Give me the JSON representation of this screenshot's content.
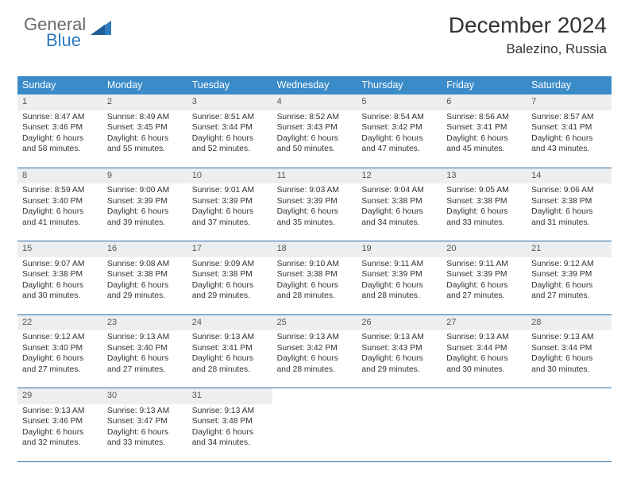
{
  "brand": {
    "line1": "General",
    "line2": "Blue"
  },
  "title": {
    "month": "December 2024",
    "location": "Balezino, Russia"
  },
  "colors": {
    "header_bg": "#3b8bc9",
    "header_text": "#ffffff",
    "daynum_bg": "#eceef0",
    "week_border": "#2f6fa0",
    "logo_gray": "#6a6a6a",
    "logo_blue": "#2e7bbf",
    "body_text": "#333333"
  },
  "typography": {
    "title_fontsize_pt": 21,
    "location_fontsize_pt": 13,
    "header_fontsize_pt": 9.5,
    "cell_fontsize_pt": 7.7
  },
  "day_names": [
    "Sunday",
    "Monday",
    "Tuesday",
    "Wednesday",
    "Thursday",
    "Friday",
    "Saturday"
  ],
  "weeks": [
    [
      {
        "n": "1",
        "sunrise": "Sunrise: 8:47 AM",
        "sunset": "Sunset: 3:46 PM",
        "d1": "Daylight: 6 hours",
        "d2": "and 58 minutes."
      },
      {
        "n": "2",
        "sunrise": "Sunrise: 8:49 AM",
        "sunset": "Sunset: 3:45 PM",
        "d1": "Daylight: 6 hours",
        "d2": "and 55 minutes."
      },
      {
        "n": "3",
        "sunrise": "Sunrise: 8:51 AM",
        "sunset": "Sunset: 3:44 PM",
        "d1": "Daylight: 6 hours",
        "d2": "and 52 minutes."
      },
      {
        "n": "4",
        "sunrise": "Sunrise: 8:52 AM",
        "sunset": "Sunset: 3:43 PM",
        "d1": "Daylight: 6 hours",
        "d2": "and 50 minutes."
      },
      {
        "n": "5",
        "sunrise": "Sunrise: 8:54 AM",
        "sunset": "Sunset: 3:42 PM",
        "d1": "Daylight: 6 hours",
        "d2": "and 47 minutes."
      },
      {
        "n": "6",
        "sunrise": "Sunrise: 8:56 AM",
        "sunset": "Sunset: 3:41 PM",
        "d1": "Daylight: 6 hours",
        "d2": "and 45 minutes."
      },
      {
        "n": "7",
        "sunrise": "Sunrise: 8:57 AM",
        "sunset": "Sunset: 3:41 PM",
        "d1": "Daylight: 6 hours",
        "d2": "and 43 minutes."
      }
    ],
    [
      {
        "n": "8",
        "sunrise": "Sunrise: 8:59 AM",
        "sunset": "Sunset: 3:40 PM",
        "d1": "Daylight: 6 hours",
        "d2": "and 41 minutes."
      },
      {
        "n": "9",
        "sunrise": "Sunrise: 9:00 AM",
        "sunset": "Sunset: 3:39 PM",
        "d1": "Daylight: 6 hours",
        "d2": "and 39 minutes."
      },
      {
        "n": "10",
        "sunrise": "Sunrise: 9:01 AM",
        "sunset": "Sunset: 3:39 PM",
        "d1": "Daylight: 6 hours",
        "d2": "and 37 minutes."
      },
      {
        "n": "11",
        "sunrise": "Sunrise: 9:03 AM",
        "sunset": "Sunset: 3:39 PM",
        "d1": "Daylight: 6 hours",
        "d2": "and 35 minutes."
      },
      {
        "n": "12",
        "sunrise": "Sunrise: 9:04 AM",
        "sunset": "Sunset: 3:38 PM",
        "d1": "Daylight: 6 hours",
        "d2": "and 34 minutes."
      },
      {
        "n": "13",
        "sunrise": "Sunrise: 9:05 AM",
        "sunset": "Sunset: 3:38 PM",
        "d1": "Daylight: 6 hours",
        "d2": "and 33 minutes."
      },
      {
        "n": "14",
        "sunrise": "Sunrise: 9:06 AM",
        "sunset": "Sunset: 3:38 PM",
        "d1": "Daylight: 6 hours",
        "d2": "and 31 minutes."
      }
    ],
    [
      {
        "n": "15",
        "sunrise": "Sunrise: 9:07 AM",
        "sunset": "Sunset: 3:38 PM",
        "d1": "Daylight: 6 hours",
        "d2": "and 30 minutes."
      },
      {
        "n": "16",
        "sunrise": "Sunrise: 9:08 AM",
        "sunset": "Sunset: 3:38 PM",
        "d1": "Daylight: 6 hours",
        "d2": "and 29 minutes."
      },
      {
        "n": "17",
        "sunrise": "Sunrise: 9:09 AM",
        "sunset": "Sunset: 3:38 PM",
        "d1": "Daylight: 6 hours",
        "d2": "and 29 minutes."
      },
      {
        "n": "18",
        "sunrise": "Sunrise: 9:10 AM",
        "sunset": "Sunset: 3:38 PM",
        "d1": "Daylight: 6 hours",
        "d2": "and 28 minutes."
      },
      {
        "n": "19",
        "sunrise": "Sunrise: 9:11 AM",
        "sunset": "Sunset: 3:39 PM",
        "d1": "Daylight: 6 hours",
        "d2": "and 28 minutes."
      },
      {
        "n": "20",
        "sunrise": "Sunrise: 9:11 AM",
        "sunset": "Sunset: 3:39 PM",
        "d1": "Daylight: 6 hours",
        "d2": "and 27 minutes."
      },
      {
        "n": "21",
        "sunrise": "Sunrise: 9:12 AM",
        "sunset": "Sunset: 3:39 PM",
        "d1": "Daylight: 6 hours",
        "d2": "and 27 minutes."
      }
    ],
    [
      {
        "n": "22",
        "sunrise": "Sunrise: 9:12 AM",
        "sunset": "Sunset: 3:40 PM",
        "d1": "Daylight: 6 hours",
        "d2": "and 27 minutes."
      },
      {
        "n": "23",
        "sunrise": "Sunrise: 9:13 AM",
        "sunset": "Sunset: 3:40 PM",
        "d1": "Daylight: 6 hours",
        "d2": "and 27 minutes."
      },
      {
        "n": "24",
        "sunrise": "Sunrise: 9:13 AM",
        "sunset": "Sunset: 3:41 PM",
        "d1": "Daylight: 6 hours",
        "d2": "and 28 minutes."
      },
      {
        "n": "25",
        "sunrise": "Sunrise: 9:13 AM",
        "sunset": "Sunset: 3:42 PM",
        "d1": "Daylight: 6 hours",
        "d2": "and 28 minutes."
      },
      {
        "n": "26",
        "sunrise": "Sunrise: 9:13 AM",
        "sunset": "Sunset: 3:43 PM",
        "d1": "Daylight: 6 hours",
        "d2": "and 29 minutes."
      },
      {
        "n": "27",
        "sunrise": "Sunrise: 9:13 AM",
        "sunset": "Sunset: 3:44 PM",
        "d1": "Daylight: 6 hours",
        "d2": "and 30 minutes."
      },
      {
        "n": "28",
        "sunrise": "Sunrise: 9:13 AM",
        "sunset": "Sunset: 3:44 PM",
        "d1": "Daylight: 6 hours",
        "d2": "and 30 minutes."
      }
    ],
    [
      {
        "n": "29",
        "sunrise": "Sunrise: 9:13 AM",
        "sunset": "Sunset: 3:46 PM",
        "d1": "Daylight: 6 hours",
        "d2": "and 32 minutes."
      },
      {
        "n": "30",
        "sunrise": "Sunrise: 9:13 AM",
        "sunset": "Sunset: 3:47 PM",
        "d1": "Daylight: 6 hours",
        "d2": "and 33 minutes."
      },
      {
        "n": "31",
        "sunrise": "Sunrise: 9:13 AM",
        "sunset": "Sunset: 3:48 PM",
        "d1": "Daylight: 6 hours",
        "d2": "and 34 minutes."
      },
      {
        "blank": true
      },
      {
        "blank": true
      },
      {
        "blank": true
      },
      {
        "blank": true
      }
    ]
  ]
}
